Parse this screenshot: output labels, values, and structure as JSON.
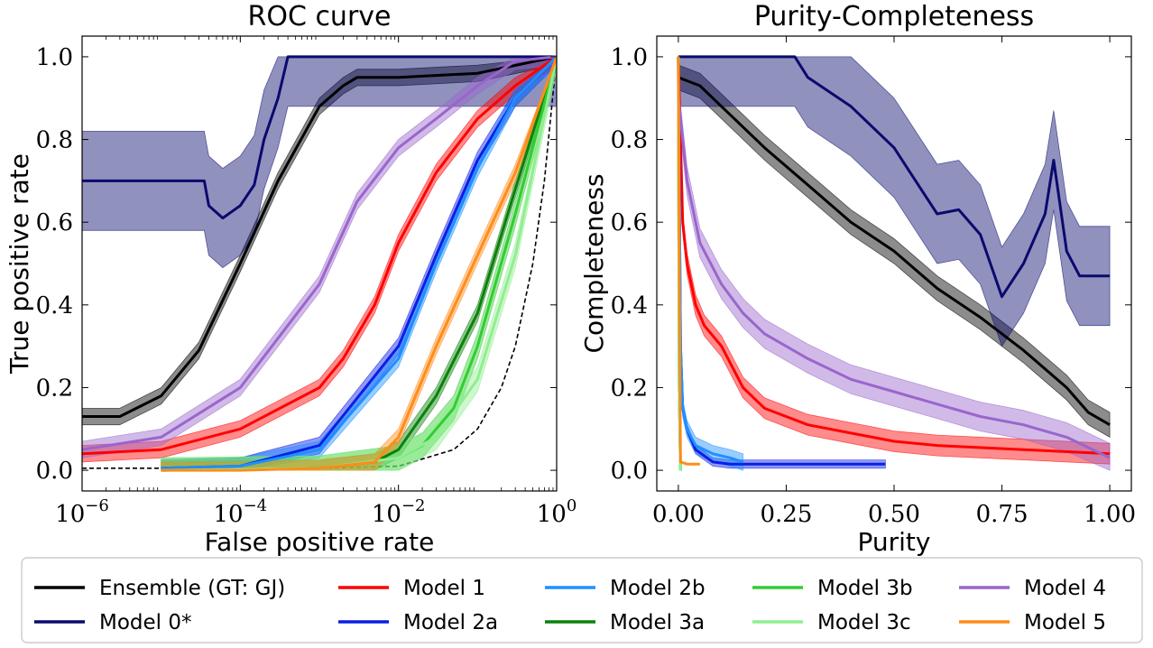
{
  "legend": {
    "entries": [
      {
        "label": "Ensemble (GT: GJ)",
        "color": "#000000"
      },
      {
        "label": "Model 0*",
        "color": "#0a0a6e"
      },
      {
        "label": "Model 1",
        "color": "#ff0000"
      },
      {
        "label": "Model 2a",
        "color": "#0a1ee6"
      },
      {
        "label": "Model 2b",
        "color": "#1e90ff"
      },
      {
        "label": "Model 3a",
        "color": "#0a820a"
      },
      {
        "label": "Model 3b",
        "color": "#32cd32"
      },
      {
        "label": "Model 3c",
        "color": "#90ee90"
      },
      {
        "label": "Model 4",
        "color": "#9966cc"
      },
      {
        "label": "Model 5",
        "color": "#ff8c1a"
      }
    ]
  },
  "chart_data": [
    {
      "type": "line",
      "title": "ROC curve",
      "xlabel": "False positive rate",
      "ylabel": "True positive rate",
      "xscale": "log",
      "xlim": [
        1e-06,
        1
      ],
      "ylim": [
        -0.05,
        1.05
      ],
      "xticks": [
        {
          "v": 1e-06,
          "base": "10",
          "exp": "−6"
        },
        {
          "v": 0.0001,
          "base": "10",
          "exp": "−4"
        },
        {
          "v": 0.01,
          "base": "10",
          "exp": "−2"
        },
        {
          "v": 1,
          "base": "10",
          "exp": "0"
        }
      ],
      "yticks": [
        "0.0",
        "0.2",
        "0.4",
        "0.6",
        "0.8",
        "1.0"
      ],
      "grid": false,
      "reference_line": {
        "style": "dashed",
        "color": "#000000",
        "x": [
          1e-06,
          0.0001,
          0.001,
          0.01,
          0.05,
          0.1,
          0.2,
          0.3,
          0.5,
          0.7,
          1.0
        ],
        "y": [
          0.005,
          0.005,
          0.005,
          0.01,
          0.05,
          0.1,
          0.2,
          0.3,
          0.5,
          0.7,
          1.0
        ]
      },
      "series": [
        {
          "name": "Ensemble (GT: GJ)",
          "color": "#000000",
          "x": [
            1e-06,
            3e-06,
            1e-05,
            3e-05,
            0.0001,
            0.0003,
            0.001,
            0.002,
            0.003,
            0.01,
            0.1,
            1.0
          ],
          "y": [
            0.13,
            0.13,
            0.18,
            0.29,
            0.5,
            0.7,
            0.88,
            0.93,
            0.95,
            0.95,
            0.96,
            1.0
          ],
          "band": 0.02,
          "width": 3
        },
        {
          "name": "Model 0*",
          "color": "#0a0a6e",
          "x": [
            1e-06,
            1e-05,
            3.5e-05,
            4e-05,
            6e-05,
            0.0001,
            0.00015,
            0.0002,
            0.0003,
            0.0004,
            1.0
          ],
          "y": [
            0.7,
            0.7,
            0.7,
            0.64,
            0.61,
            0.64,
            0.69,
            0.8,
            0.9,
            1.0,
            1.0
          ],
          "band": 0.12,
          "width": 3
        },
        {
          "name": "Model 1",
          "color": "#ff0000",
          "x": [
            1e-06,
            1e-05,
            0.0001,
            0.001,
            0.002,
            0.005,
            0.01,
            0.03,
            0.1,
            0.3,
            1.0
          ],
          "y": [
            0.04,
            0.05,
            0.1,
            0.2,
            0.27,
            0.4,
            0.55,
            0.72,
            0.85,
            0.93,
            1.0
          ],
          "band": 0.02,
          "width": 3
        },
        {
          "name": "Model 2a",
          "color": "#0a1ee6",
          "x": [
            1e-05,
            0.0001,
            0.001,
            0.01,
            0.03,
            0.1,
            0.3,
            1.0
          ],
          "y": [
            0.005,
            0.01,
            0.06,
            0.3,
            0.52,
            0.75,
            0.9,
            1.0
          ],
          "band": 0.02,
          "width": 3
        },
        {
          "name": "Model 2b",
          "color": "#1e90ff",
          "x": [
            1e-05,
            0.0001,
            0.001,
            0.01,
            0.03,
            0.1,
            0.3,
            1.0
          ],
          "y": [
            0.005,
            0.01,
            0.05,
            0.27,
            0.5,
            0.73,
            0.9,
            1.0
          ],
          "band": 0.02,
          "width": 3
        },
        {
          "name": "Model 3a",
          "color": "#0a820a",
          "x": [
            1e-05,
            0.001,
            0.005,
            0.01,
            0.03,
            0.1,
            0.3,
            1.0
          ],
          "y": [
            0.0,
            0.005,
            0.02,
            0.05,
            0.18,
            0.38,
            0.68,
            1.0
          ],
          "band": 0.02,
          "width": 3
        },
        {
          "name": "Model 3b",
          "color": "#32cd32",
          "x": [
            1e-05,
            0.001,
            0.01,
            0.02,
            0.05,
            0.1,
            0.3,
            1.0
          ],
          "y": [
            0.0,
            0.005,
            0.03,
            0.06,
            0.15,
            0.3,
            0.62,
            1.0
          ],
          "band": 0.03,
          "width": 3
        },
        {
          "name": "Model 3c",
          "color": "#90ee90",
          "x": [
            1e-05,
            0.001,
            0.01,
            0.03,
            0.1,
            0.3,
            1.0
          ],
          "y": [
            0.0,
            0.005,
            0.03,
            0.08,
            0.22,
            0.52,
            1.0
          ],
          "band": 0.03,
          "width": 3
        },
        {
          "name": "Model 4",
          "color": "#9966cc",
          "x": [
            1e-06,
            1e-05,
            0.0001,
            0.001,
            0.003,
            0.01,
            0.03,
            0.1,
            0.3,
            1.0
          ],
          "y": [
            0.05,
            0.08,
            0.2,
            0.45,
            0.65,
            0.78,
            0.85,
            0.93,
            0.99,
            1.0
          ],
          "band": 0.02,
          "width": 3
        },
        {
          "name": "Model 5",
          "color": "#ff8c1a",
          "x": [
            1e-05,
            0.0001,
            0.001,
            0.005,
            0.01,
            0.03,
            0.1,
            0.3,
            1.0
          ],
          "y": [
            0.0,
            0.0,
            0.005,
            0.02,
            0.08,
            0.3,
            0.52,
            0.72,
            1.0
          ],
          "band": 0.02,
          "width": 3
        }
      ]
    },
    {
      "type": "line",
      "title": "Purity-Completeness",
      "xlabel": "Purity",
      "ylabel": "Completeness",
      "xlim": [
        -0.05,
        1.05
      ],
      "ylim": [
        -0.05,
        1.05
      ],
      "xticks": [
        "0.00",
        "0.25",
        "0.50",
        "0.75",
        "1.00"
      ],
      "yticks": [
        "0.0",
        "0.2",
        "0.4",
        "0.6",
        "0.8",
        "1.0"
      ],
      "grid": false,
      "series": [
        {
          "name": "Ensemble (GT: GJ)",
          "color": "#000000",
          "x": [
            0.0,
            0.05,
            0.1,
            0.2,
            0.3,
            0.4,
            0.5,
            0.6,
            0.7,
            0.8,
            0.9,
            0.95,
            1.0
          ],
          "y": [
            0.95,
            0.93,
            0.88,
            0.78,
            0.69,
            0.6,
            0.53,
            0.44,
            0.37,
            0.29,
            0.2,
            0.14,
            0.11
          ],
          "band": 0.03,
          "width": 3
        },
        {
          "name": "Model 0*",
          "color": "#0a0a6e",
          "x": [
            0.0,
            0.27,
            0.3,
            0.4,
            0.5,
            0.55,
            0.6,
            0.65,
            0.7,
            0.75,
            0.8,
            0.85,
            0.87,
            0.9,
            0.93,
            1.0
          ],
          "y": [
            1.0,
            1.0,
            0.95,
            0.88,
            0.78,
            0.7,
            0.62,
            0.63,
            0.57,
            0.42,
            0.5,
            0.62,
            0.75,
            0.53,
            0.47,
            0.47
          ],
          "band": 0.12,
          "width": 3
        },
        {
          "name": "Model 1",
          "color": "#ff0000",
          "x": [
            0.0,
            0.01,
            0.02,
            0.04,
            0.06,
            0.1,
            0.15,
            0.2,
            0.3,
            0.4,
            0.5,
            0.6,
            0.8,
            1.0
          ],
          "y": [
            1.0,
            0.6,
            0.5,
            0.4,
            0.35,
            0.3,
            0.2,
            0.15,
            0.11,
            0.09,
            0.07,
            0.06,
            0.05,
            0.04
          ],
          "band": 0.025,
          "width": 3
        },
        {
          "name": "Model 2a",
          "color": "#0a1ee6",
          "x": [
            0.0,
            0.005,
            0.01,
            0.02,
            0.04,
            0.08,
            0.12,
            0.2,
            0.3,
            0.48
          ],
          "y": [
            1.0,
            0.3,
            0.15,
            0.1,
            0.05,
            0.02,
            0.015,
            0.015,
            0.015,
            0.015
          ],
          "band": 0.01,
          "width": 3
        },
        {
          "name": "Model 2b",
          "color": "#1e90ff",
          "x": [
            0.0,
            0.005,
            0.01,
            0.02,
            0.04,
            0.08,
            0.12,
            0.15
          ],
          "y": [
            1.0,
            0.3,
            0.15,
            0.1,
            0.06,
            0.04,
            0.03,
            0.02
          ],
          "band": 0.02,
          "width": 3
        },
        {
          "name": "Model 3a",
          "color": "#0a820a",
          "x": [
            0.0,
            0.002,
            0.005
          ],
          "y": [
            1.0,
            0.2,
            0.0
          ],
          "band": 0.0,
          "width": 3
        },
        {
          "name": "Model 3b",
          "color": "#32cd32",
          "x": [
            0.0,
            0.002,
            0.005
          ],
          "y": [
            1.0,
            0.2,
            0.0
          ],
          "band": 0.0,
          "width": 3
        },
        {
          "name": "Model 3c",
          "color": "#90ee90",
          "x": [
            0.0,
            0.002,
            0.005
          ],
          "y": [
            1.0,
            0.2,
            0.0
          ],
          "band": 0.0,
          "width": 3
        },
        {
          "name": "Model 4",
          "color": "#9966cc",
          "x": [
            0.0,
            0.02,
            0.05,
            0.1,
            0.15,
            0.2,
            0.3,
            0.4,
            0.5,
            0.6,
            0.7,
            0.8,
            0.9,
            1.0
          ],
          "y": [
            0.9,
            0.7,
            0.55,
            0.45,
            0.38,
            0.33,
            0.27,
            0.22,
            0.19,
            0.16,
            0.13,
            0.11,
            0.08,
            0.03
          ],
          "band": 0.035,
          "width": 3
        },
        {
          "name": "Model 5",
          "color": "#ff8c1a",
          "x": [
            0.0,
            0.002,
            0.005,
            0.02,
            0.05
          ],
          "y": [
            1.0,
            0.5,
            0.02,
            0.015,
            0.015
          ],
          "band": 0.0,
          "width": 3
        }
      ]
    }
  ]
}
